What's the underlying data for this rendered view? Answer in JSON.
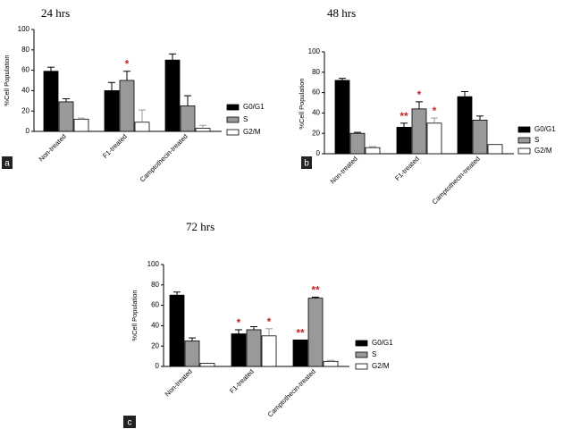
{
  "figure": {
    "colors": {
      "g0g1": "#000000",
      "s": "#999999",
      "g2m": "#ffffff",
      "star": "#c0282d",
      "panel_tag_bg": "#222222"
    }
  },
  "chart_data": [
    {
      "type": "bar",
      "panel_label": "a",
      "title": "24 hrs",
      "xlabel": "",
      "ylabel": "%Cell Population",
      "ylim": [
        0,
        100
      ],
      "yticks": [
        "0",
        "20",
        "40",
        "60",
        "80",
        "100"
      ],
      "categories": [
        "Non-treated",
        "F1-treated",
        "Camptothecin-treated"
      ],
      "series": [
        {
          "name": "G0/G1",
          "values": [
            59,
            40,
            70
          ],
          "errors": [
            4,
            8,
            6
          ],
          "stars": [
            "",
            "",
            ""
          ]
        },
        {
          "name": "S",
          "values": [
            29,
            50,
            25
          ],
          "errors": [
            3,
            9,
            10
          ],
          "stars": [
            "",
            "*",
            ""
          ]
        },
        {
          "name": "G2/M",
          "values": [
            12,
            9,
            3
          ],
          "errors": [
            1,
            12,
            3
          ],
          "stars": [
            "",
            "",
            ""
          ]
        }
      ],
      "legend": "right",
      "grid": false
    },
    {
      "type": "bar",
      "panel_label": "b",
      "title": "48 hrs",
      "xlabel": "",
      "ylabel": "%Cell Population",
      "ylim": [
        0,
        100
      ],
      "yticks": [
        "0",
        "20",
        "40",
        "60",
        "80",
        "100"
      ],
      "categories": [
        "Non-treated",
        "F1-treated",
        "Camptothecin-treated"
      ],
      "series": [
        {
          "name": "G0/G1",
          "values": [
            72,
            26,
            56
          ],
          "errors": [
            2,
            4,
            5
          ],
          "stars": [
            "",
            "**",
            ""
          ]
        },
        {
          "name": "S",
          "values": [
            20,
            44,
            33
          ],
          "errors": [
            1,
            7,
            4
          ],
          "stars": [
            "",
            "*",
            ""
          ]
        },
        {
          "name": "G2/M",
          "values": [
            6,
            30,
            9
          ],
          "errors": [
            1,
            5,
            0
          ],
          "stars": [
            "",
            "*",
            ""
          ]
        }
      ],
      "legend": "right",
      "grid": false
    },
    {
      "type": "bar",
      "panel_label": "c",
      "title": "72 hrs",
      "xlabel": "",
      "ylabel": "%Cell Population",
      "ylim": [
        0,
        100
      ],
      "yticks": [
        "0",
        "20",
        "40",
        "60",
        "80",
        "100"
      ],
      "categories": [
        "Non-treated",
        "F1-treated",
        "Camptothecin-treated"
      ],
      "series": [
        {
          "name": "G0/G1",
          "values": [
            70,
            32,
            26
          ],
          "errors": [
            3,
            4,
            0
          ],
          "stars": [
            "",
            "*",
            "**"
          ]
        },
        {
          "name": "S",
          "values": [
            25,
            36,
            67
          ],
          "errors": [
            3,
            3,
            1
          ],
          "stars": [
            "",
            "",
            "**"
          ]
        },
        {
          "name": "G2/M",
          "values": [
            3,
            30,
            5
          ],
          "errors": [
            0,
            7,
            1
          ],
          "stars": [
            "",
            "*",
            ""
          ]
        }
      ],
      "legend": "right",
      "grid": false
    }
  ]
}
